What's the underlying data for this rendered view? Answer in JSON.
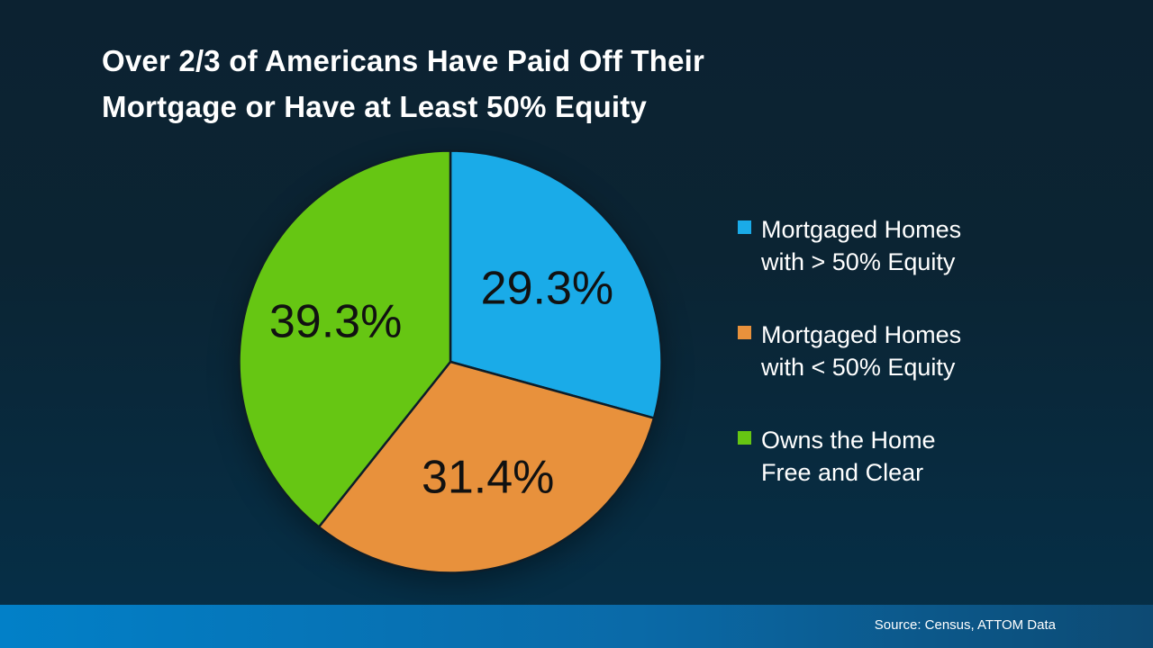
{
  "title": {
    "line1": "Over 2/3 of Americans Have Paid Off Their",
    "line2": "Mortgage or Have at Least 50% Equity"
  },
  "chart_data": {
    "type": "pie",
    "title": "Over 2/3 of Americans Have Paid Off Their Mortgage or Have at Least 50% Equity",
    "start_angle_deg": 0,
    "direction": "clockwise",
    "legend_position": "right",
    "label_color": "#111111",
    "stroke_color": "#0c1d29",
    "slices": [
      {
        "name": "Mortgaged Homes with > 50% Equity",
        "value": 29.3,
        "label": "29.3%",
        "color": "#1aabe8",
        "legend_lines": [
          "Mortgaged Homes",
          "with > 50% Equity"
        ]
      },
      {
        "name": "Mortgaged Homes with < 50% Equity",
        "value": 31.4,
        "label": "31.4%",
        "color": "#e8913c",
        "legend_lines": [
          "Mortgaged Homes",
          "with < 50% Equity"
        ]
      },
      {
        "name": "Owns the Home Free and Clear",
        "value": 39.3,
        "label": "39.3%",
        "color": "#66c613",
        "legend_lines": [
          "Owns the Home",
          "Free and Clear"
        ]
      }
    ]
  },
  "footer": {
    "source_label": "Source: Census, ATTOM Data"
  },
  "colors": {
    "background_top": "#0c2231",
    "background_bottom": "#053049",
    "footer_bar_left": "#0280c8",
    "footer_bar_right": "#0d4a73",
    "title_color": "#ffffff",
    "legend_text_color": "#ffffff"
  }
}
